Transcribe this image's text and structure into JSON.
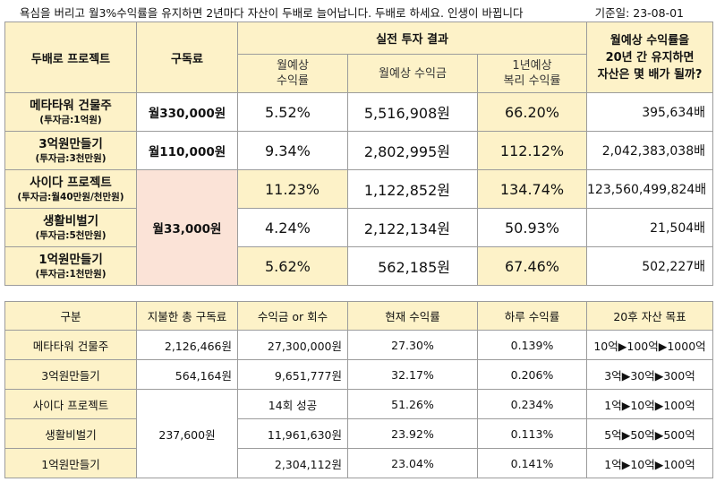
{
  "header": {
    "headline": "욕심을 버리고 월3%수익률을 유지하면 2년마다 자산이 두배로 늘어납니다. 두배로 하세요. 인생이 바뀝니다",
    "date": "기준일:  23-08-01"
  },
  "top_table": {
    "col_project": "두배로 프로젝트",
    "col_fee": "구독료",
    "col_group": "실전 투자 결과",
    "col_monthly_rate": [
      "월예상",
      "수익률"
    ],
    "col_monthly_amount": "월예상 수익금",
    "col_annual_rate": [
      "1년예상",
      "복리 수익률"
    ],
    "col_multiplier": [
      "월예상 수익률을",
      "20년 간 유지하면",
      "자산은 몇 배가 될까?"
    ],
    "rows": [
      {
        "name": "메타타워 건물주",
        "sub": "(투자금:1억원)",
        "fee": "월330,000원",
        "monthly_rate": "5.52%",
        "monthly_amount": "5,516,908원",
        "annual_rate": "66.20%",
        "multiplier": "395,634배"
      },
      {
        "name": "3억원만들기",
        "sub": "(투자금:3천만원)",
        "fee": "월110,000원",
        "monthly_rate": "9.34%",
        "monthly_amount": "2,802,995원",
        "annual_rate": "112.12%",
        "multiplier": "2,042,383,038배"
      },
      {
        "name": "사이다 프로젝트",
        "sub": "(투자금:월40만원/천만원)",
        "monthly_rate": "11.23%",
        "monthly_amount": "1,122,852원",
        "annual_rate": "134.74%",
        "multiplier": "123,560,499,824배"
      },
      {
        "name": "생활비벌기",
        "sub": "(투자금:5천만원)",
        "monthly_rate": "4.24%",
        "monthly_amount": "2,122,134원",
        "annual_rate": "50.93%",
        "multiplier": "21,504배"
      },
      {
        "name": "1억원만들기",
        "sub": "(투자금:1천만원)",
        "monthly_rate": "5.62%",
        "monthly_amount": "562,185원",
        "annual_rate": "67.46%",
        "multiplier": "502,227배"
      }
    ],
    "shared_fee": "월33,000원"
  },
  "bottom_table": {
    "headers": [
      "구분",
      "지불한 총 구독료",
      "수익금 or 회수",
      "현재 수익률",
      "하루 수익률",
      "20후 자산 목표"
    ],
    "rows": [
      {
        "name": "메타타워 건물주",
        "paid": "2,126,466원",
        "profit": "27,300,000원",
        "rate": "27.30%",
        "daily": "0.139%",
        "goal": "10억▶100억▶1000억"
      },
      {
        "name": "3억원만들기",
        "paid": "564,164원",
        "profit": "9,651,777원",
        "rate": "32.17%",
        "daily": "0.206%",
        "goal": "3억▶30억▶300억"
      },
      {
        "name": "사이다 프로젝트",
        "profit": "14회 성공",
        "rate": "51.26%",
        "daily": "0.234%",
        "goal": "1억▶10억▶100억"
      },
      {
        "name": "생활비벌기",
        "profit": "11,961,630원",
        "rate": "23.92%",
        "daily": "0.113%",
        "goal": "5억▶50억▶500억"
      },
      {
        "name": "1억원만들기",
        "profit": "2,304,112원",
        "rate": "23.04%",
        "daily": "0.141%",
        "goal": "1억▶10억▶100억"
      }
    ],
    "shared_paid": "237,600원"
  }
}
